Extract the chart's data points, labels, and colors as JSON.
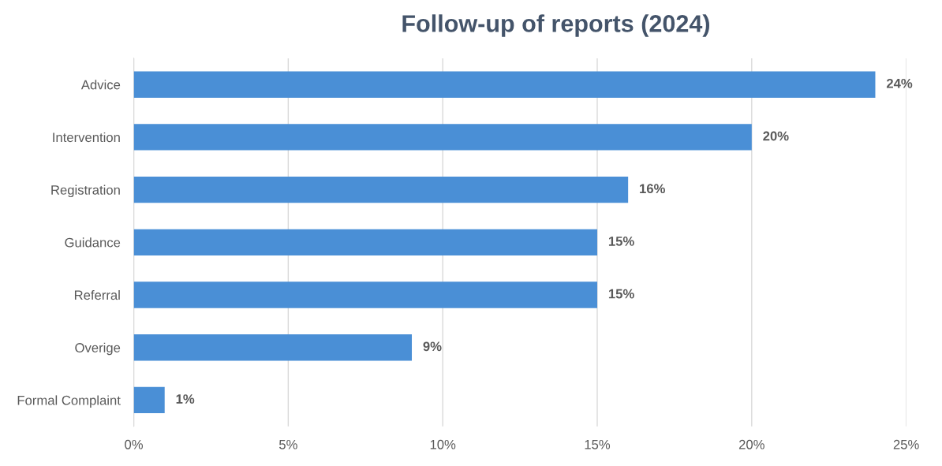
{
  "chart_data": {
    "type": "bar",
    "orientation": "horizontal",
    "title": "Follow-up of reports (2024)",
    "categories": [
      "Advice",
      "Intervention",
      "Registration",
      "Guidance",
      "Referral",
      "Overige",
      "Formal Complaint"
    ],
    "values": [
      24,
      20,
      16,
      15,
      15,
      9,
      1
    ],
    "value_labels": [
      "24%",
      "20%",
      "16%",
      "15%",
      "15%",
      "9%",
      "1%"
    ],
    "color": "#4a8fd6",
    "xlim": [
      0,
      25
    ],
    "xticks": [
      {
        "value": 0,
        "label": "0%"
      },
      {
        "value": 5,
        "label": "5%"
      },
      {
        "value": 10,
        "label": "10%"
      },
      {
        "value": 15,
        "label": "15%"
      },
      {
        "value": 20,
        "label": "20%"
      },
      {
        "value": 25,
        "label": "25%"
      }
    ],
    "grid": "x",
    "legend": false
  }
}
